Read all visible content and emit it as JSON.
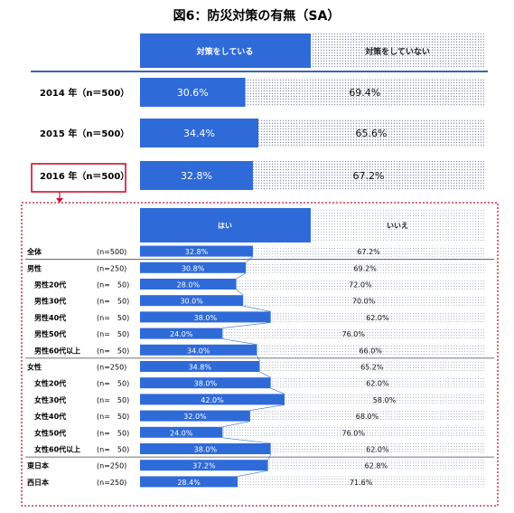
{
  "chart_data": [
    {
      "type": "bar",
      "title": "図6：防災対策の有無（SA）",
      "legend": [
        "対策をしている",
        "対策をしていない"
      ],
      "categories": [
        "2014 年（n＝500）",
        "2015 年（n＝500）",
        "2016 年（n＝500）"
      ],
      "series": [
        {
          "name": "対策をしている",
          "values": [
            30.6,
            34.4,
            32.8
          ],
          "labels": [
            "30.6%",
            "34.4%",
            "32.8%"
          ]
        },
        {
          "name": "対策をしていない",
          "values": [
            69.4,
            65.6,
            67.2
          ],
          "labels": [
            "69.4%",
            "65.6%",
            "67.2%"
          ]
        }
      ],
      "stacked": true,
      "xlim": [
        0,
        100
      ]
    },
    {
      "type": "bar",
      "legend": [
        "はい",
        "いいえ"
      ],
      "rows": [
        {
          "label": "全体",
          "n": "(n=500)",
          "yes": 32.8,
          "yes_label": "32.8%",
          "no": 67.2,
          "no_label": "67.2%",
          "indent": false
        },
        {
          "label": "男性",
          "n": "(n=250)",
          "yes": 30.8,
          "yes_label": "30.8%",
          "no": 69.2,
          "no_label": "69.2%",
          "indent": false
        },
        {
          "label": "男性20代",
          "n": "(n=　50)",
          "yes": 28.0,
          "yes_label": "28.0%",
          "no": 72.0,
          "no_label": "72.0%",
          "indent": true
        },
        {
          "label": "男性30代",
          "n": "(n=　50)",
          "yes": 30.0,
          "yes_label": "30.0%",
          "no": 70.0,
          "no_label": "70.0%",
          "indent": true
        },
        {
          "label": "男性40代",
          "n": "(n=　50)",
          "yes": 38.0,
          "yes_label": "38.0%",
          "no": 62.0,
          "no_label": "62.0%",
          "indent": true
        },
        {
          "label": "男性50代",
          "n": "(n=　50)",
          "yes": 24.0,
          "yes_label": "24.0%",
          "no": 76.0,
          "no_label": "76.0%",
          "indent": true
        },
        {
          "label": "男性60代以上",
          "n": "(n=　50)",
          "yes": 34.0,
          "yes_label": "34.0%",
          "no": 66.0,
          "no_label": "66.0%",
          "indent": true
        },
        {
          "label": "女性",
          "n": "(n=250)",
          "yes": 34.8,
          "yes_label": "34.8%",
          "no": 65.2,
          "no_label": "65.2%",
          "indent": false
        },
        {
          "label": "女性20代",
          "n": "(n=　50)",
          "yes": 38.0,
          "yes_label": "38.0%",
          "no": 62.0,
          "no_label": "62.0%",
          "indent": true
        },
        {
          "label": "女性30代",
          "n": "(n=　50)",
          "yes": 42.0,
          "yes_label": "42.0%",
          "no": 58.0,
          "no_label": "58.0%",
          "indent": true
        },
        {
          "label": "女性40代",
          "n": "(n=　50)",
          "yes": 32.0,
          "yes_label": "32.0%",
          "no": 68.0,
          "no_label": "68.0%",
          "indent": true
        },
        {
          "label": "女性50代",
          "n": "(n=　50)",
          "yes": 24.0,
          "yes_label": "24.0%",
          "no": 76.0,
          "no_label": "76.0%",
          "indent": true
        },
        {
          "label": "女性60代以上",
          "n": "(n=　50)",
          "yes": 38.0,
          "yes_label": "38.0%",
          "no": 62.0,
          "no_label": "62.0%",
          "indent": true
        },
        {
          "label": "東日本",
          "n": "(n=250)",
          "yes": 37.2,
          "yes_label": "37.2%",
          "no": 62.8,
          "no_label": "62.8%",
          "indent": false
        },
        {
          "label": "西日本",
          "n": "(n=250)",
          "yes": 28.4,
          "yes_label": "28.4%",
          "no": 71.6,
          "no_label": "71.6%",
          "indent": false
        }
      ],
      "stacked": true,
      "xlim": [
        0,
        100
      ]
    }
  ],
  "colors": {
    "yes": "#2f6ad9",
    "no_dot": "#9aa3b5",
    "highlight": "#c8102e",
    "rule": "#3a62b8"
  }
}
